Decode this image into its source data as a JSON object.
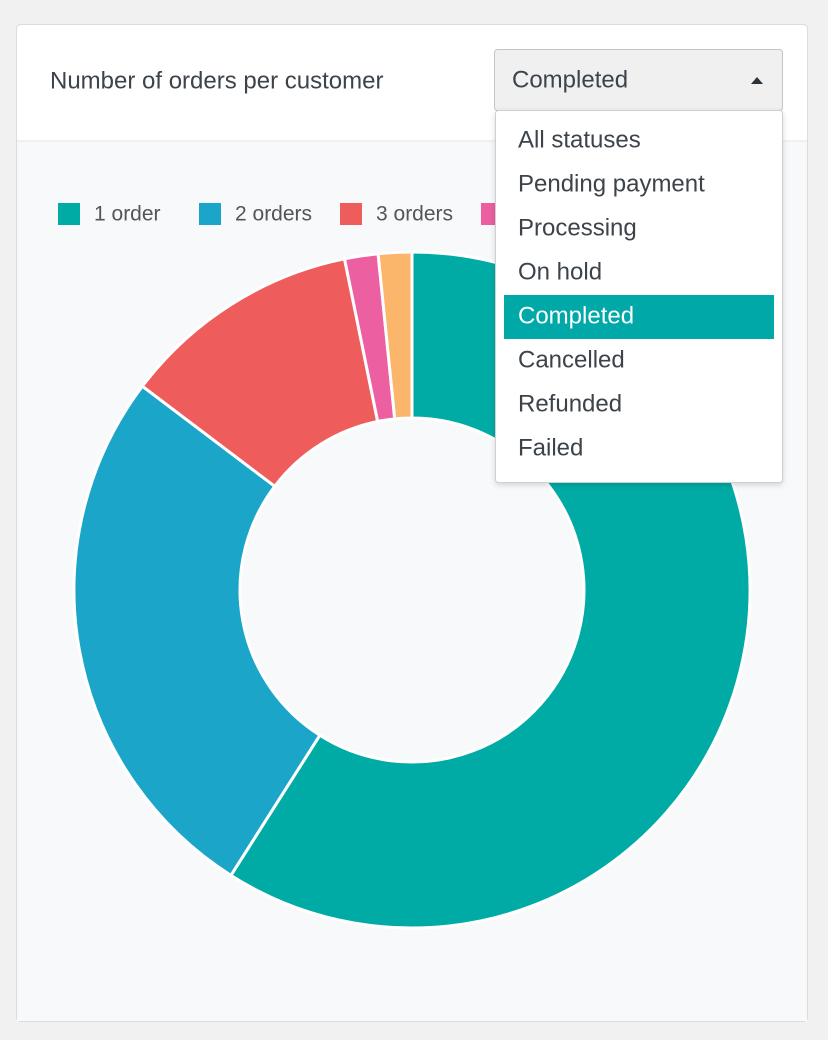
{
  "header": {
    "title": "Number of orders per customer",
    "select": {
      "value": "Completed",
      "options": [
        "All statuses",
        "Pending payment",
        "Processing",
        "On hold",
        "Completed",
        "Cancelled",
        "Refunded",
        "Failed"
      ]
    }
  },
  "chart_data": {
    "type": "pie",
    "categories": [
      "1 order",
      "2 orders",
      "3 orders",
      null,
      null
    ],
    "values": [
      59,
      26.3,
      11.5,
      1.6,
      1.6
    ],
    "colors": [
      "#00aba5",
      "#1ba6c9",
      "#ef5c5c",
      "#ec5fa0",
      "#fbb66b"
    ],
    "legend": "top-left"
  }
}
